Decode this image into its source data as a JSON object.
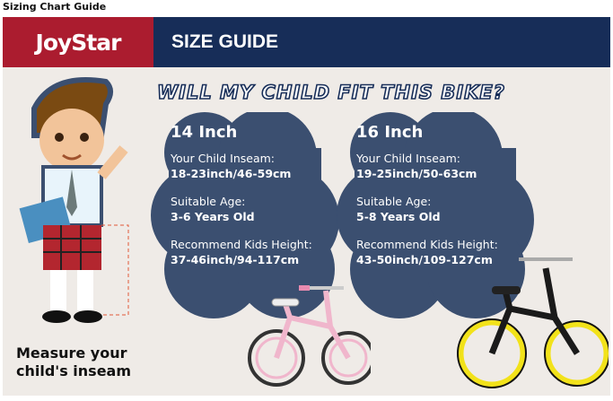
{
  "page_title": "Sizing Chart Guide",
  "brand": "JoyStar",
  "banner_title": "SIZE GUIDE",
  "headline": "WILL MY CHILD FIT THIS BIKE?",
  "sizes": [
    {
      "size": "14 Inch",
      "inseam_label": "Your Child Inseam:",
      "inseam": "18-23inch/46-59cm",
      "age_label": "Suitable Age:",
      "age": "3-6 Years Old",
      "height_label": "Recommend Kids Height:",
      "height": "37-46inch/94-117cm"
    },
    {
      "size": "16 Inch",
      "inseam_label": "Your Child Inseam:",
      "inseam": "19-25inch/50-63cm",
      "age_label": "Suitable Age:",
      "age": "5-8 Years Old",
      "height_label": "Recommend Kids Height:",
      "height": "43-50inch/109-127cm"
    }
  ],
  "measure_line1": "Measure your",
  "measure_line2": "child's inseam",
  "colors": {
    "red": "#ab1c2f",
    "navy": "#172d58",
    "cloud": "#3b4f70",
    "pink_bike": "#f0b6cc",
    "black_bike": "#1a1a1a",
    "yellow_wheel": "#f2e21a"
  }
}
